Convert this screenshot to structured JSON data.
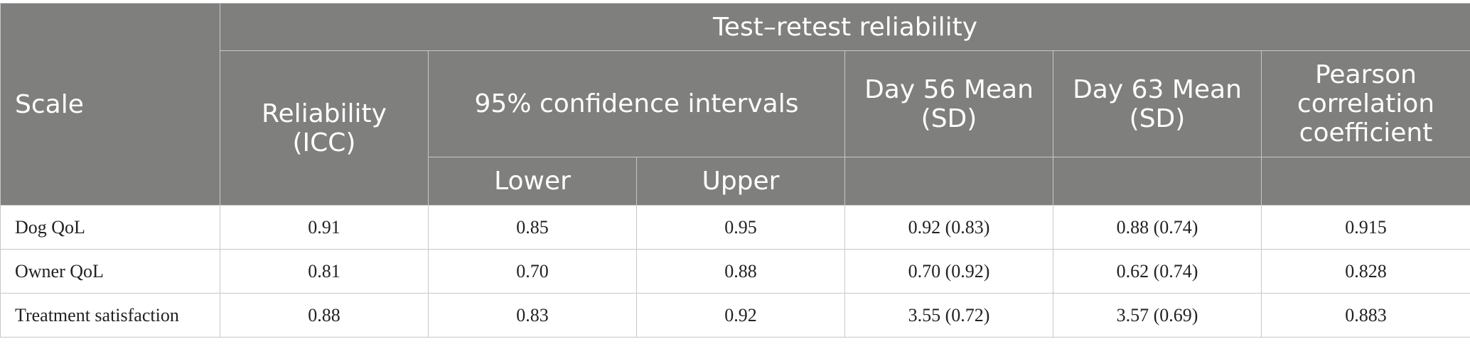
{
  "table": {
    "header": {
      "scale": "Scale",
      "group": "Test–retest reliability",
      "reliability": "Reliability (ICC)",
      "ci": "95% confidence intervals",
      "lower": "Lower",
      "upper": "Upper",
      "day56": "Day 56 Mean (SD)",
      "day63": "Day 63 Mean (SD)",
      "pearson": "Pearson correlation coefficient"
    },
    "rows": [
      {
        "scale": "Dog QoL",
        "icc": "0.91",
        "lower": "0.85",
        "upper": "0.95",
        "day56": "0.92 (0.83)",
        "day63": "0.88 (0.74)",
        "pearson": "0.915"
      },
      {
        "scale": "Owner QoL",
        "icc": "0.81",
        "lower": "0.70",
        "upper": "0.88",
        "day56": "0.70 (0.92)",
        "day63": "0.62 (0.74)",
        "pearson": "0.828"
      },
      {
        "scale": "Treatment satisfaction",
        "icc": "0.88",
        "lower": "0.83",
        "upper": "0.92",
        "day56": "3.55 (0.72)",
        "day63": "3.57 (0.69)",
        "pearson": "0.883"
      }
    ]
  }
}
